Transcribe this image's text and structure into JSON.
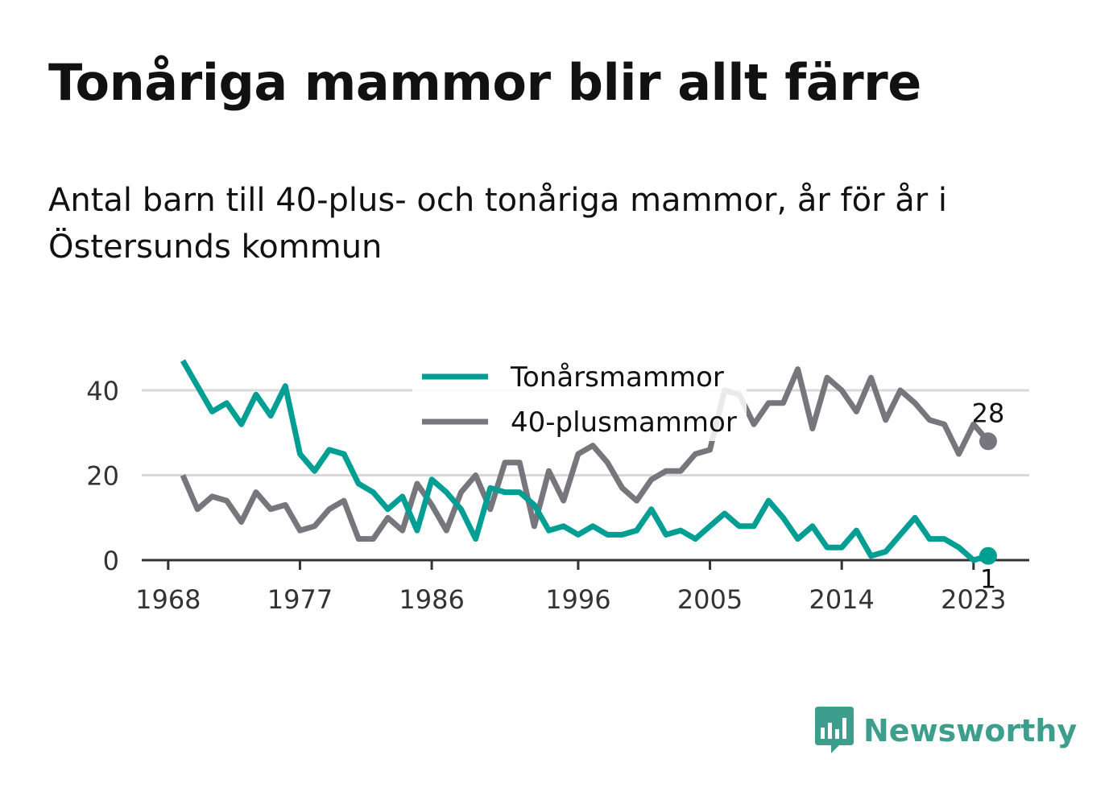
{
  "title": "Tonåriga mammor blir allt färre",
  "subtitle": "Antal barn till 40-plus- och tonåriga mammor, år för år i Östersunds kommun",
  "brand": "Newsworthy",
  "colors": {
    "teen": "#009e93",
    "forty": "#76767c",
    "grid": "#d9d9d9",
    "axis": "#333333",
    "brand": "#3e9e8e"
  },
  "chart_data": {
    "type": "line",
    "x": [
      1969,
      1970,
      1971,
      1972,
      1973,
      1974,
      1975,
      1976,
      1977,
      1978,
      1979,
      1980,
      1981,
      1982,
      1983,
      1984,
      1985,
      1986,
      1987,
      1988,
      1989,
      1990,
      1991,
      1992,
      1993,
      1994,
      1995,
      1996,
      1997,
      1998,
      1999,
      2000,
      2001,
      2002,
      2003,
      2004,
      2005,
      2006,
      2007,
      2008,
      2009,
      2010,
      2011,
      2012,
      2013,
      2014,
      2015,
      2016,
      2017,
      2018,
      2019,
      2020,
      2021,
      2022,
      2023,
      2024
    ],
    "series": [
      {
        "name": "Tonårsmammor",
        "values": [
          47,
          41,
          35,
          37,
          32,
          39,
          34,
          41,
          25,
          21,
          26,
          25,
          18,
          16,
          12,
          15,
          7,
          19,
          16,
          12,
          5,
          17,
          16,
          16,
          13,
          7,
          8,
          6,
          8,
          6,
          6,
          7,
          12,
          6,
          7,
          5,
          8,
          11,
          8,
          8,
          14,
          10,
          5,
          8,
          3,
          3,
          7,
          1,
          2,
          6,
          10,
          5,
          5,
          3,
          0,
          1
        ]
      },
      {
        "name": "40-plusmammor",
        "values": [
          20,
          12,
          15,
          14,
          9,
          16,
          12,
          13,
          7,
          8,
          12,
          14,
          5,
          5,
          10,
          7,
          18,
          13,
          7,
          16,
          20,
          12,
          23,
          23,
          8,
          21,
          14,
          25,
          27,
          23,
          17,
          14,
          19,
          21,
          21,
          25,
          26,
          40,
          39,
          32,
          37,
          37,
          45,
          31,
          43,
          40,
          35,
          43,
          33,
          40,
          37,
          33,
          32,
          25,
          32,
          28
        ]
      }
    ],
    "x_ticks": [
      "1968",
      "1977",
      "1986",
      "1996",
      "2005",
      "2014",
      "2023"
    ],
    "y_ticks": [
      "0",
      "20",
      "40"
    ],
    "ylim": [
      0,
      50
    ],
    "end_labels": [
      "1",
      "28"
    ],
    "legend_position": "top-center",
    "grid": true
  }
}
